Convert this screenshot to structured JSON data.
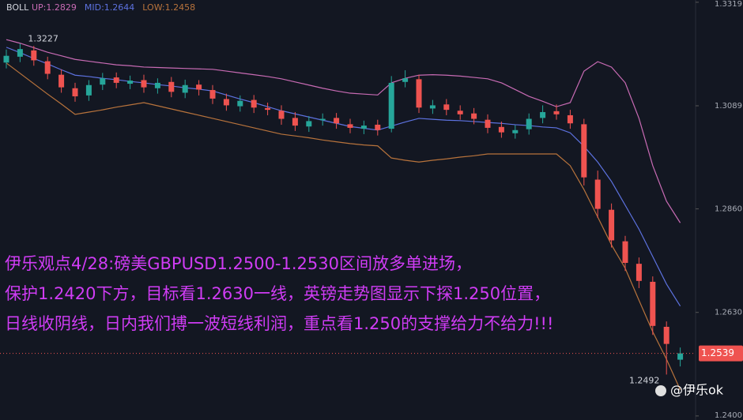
{
  "chart_data": {
    "type": "candlestick",
    "indicator": "BOLL",
    "ylim": [
      1.2391,
      1.3324
    ],
    "yticks": [
      1.3319,
      1.3089,
      {
        "value": 1.286,
        "label": "1.2860"
      },
      {
        "value": 1.263,
        "label": "1.2630"
      },
      {
        "value": 1.24,
        "label": "1.2400"
      }
    ],
    "up_color": "#26a69a",
    "down_color": "#ef5350",
    "open": [
      1.3185,
      1.3198,
      1.3212,
      1.3188,
      1.3158,
      1.3128,
      1.3112,
      1.3136,
      1.3152,
      1.3138,
      1.3146,
      1.3128,
      1.3142,
      1.3118,
      1.3136,
      1.3124,
      1.3104,
      1.3088,
      1.3102,
      1.3084,
      1.3078,
      1.3062,
      1.3043,
      1.3057,
      1.3062,
      1.3048,
      1.3038,
      1.3047,
      1.3038,
      1.3142,
      1.3148,
      1.3083,
      1.3092,
      1.3078,
      1.3072,
      1.3058,
      1.3042,
      1.3028,
      1.3037,
      1.3062,
      1.3077,
      1.3068,
      1.3048,
      1.2925,
      1.2858,
      1.2788,
      1.2738,
      1.2698,
      1.2598,
      1.2525
    ],
    "high": [
      1.3214,
      1.3227,
      1.3222,
      1.3198,
      1.317,
      1.314,
      1.3146,
      1.3162,
      1.3163,
      1.3156,
      1.3158,
      1.315,
      1.3153,
      1.3147,
      1.3146,
      1.3135,
      1.3116,
      1.3112,
      1.3113,
      1.3096,
      1.309,
      1.3075,
      1.3066,
      1.3072,
      1.3073,
      1.306,
      1.3056,
      1.3058,
      1.3155,
      1.3168,
      1.3158,
      1.3102,
      1.3104,
      1.309,
      1.3084,
      1.307,
      1.3054,
      1.3046,
      1.3072,
      1.309,
      1.3092,
      1.308,
      1.306,
      1.2945,
      1.2872,
      1.28,
      1.2752,
      1.271,
      1.261,
      1.2552
    ],
    "low": [
      1.3172,
      1.3186,
      1.3178,
      1.3148,
      1.3118,
      1.3098,
      1.31,
      1.3124,
      1.3128,
      1.3126,
      1.3118,
      1.3116,
      1.3108,
      1.3106,
      1.3112,
      1.3093,
      1.3078,
      1.3076,
      1.3073,
      1.3068,
      1.3047,
      1.3033,
      1.3031,
      1.3045,
      1.3038,
      1.3028,
      1.3026,
      1.3023,
      1.303,
      1.313,
      1.3073,
      1.3071,
      1.3068,
      1.3058,
      1.3048,
      1.3028,
      1.3018,
      1.3016,
      1.3025,
      1.305,
      1.3058,
      1.3038,
      1.2912,
      1.284,
      1.2774,
      1.2722,
      1.2684,
      1.258,
      1.2492,
      1.251
    ],
    "close": [
      1.32,
      1.3215,
      1.319,
      1.316,
      1.313,
      1.311,
      1.3135,
      1.315,
      1.314,
      1.3145,
      1.313,
      1.314,
      1.312,
      1.3135,
      1.3125,
      1.3105,
      1.309,
      1.31,
      1.3085,
      1.308,
      1.306,
      1.3045,
      1.3055,
      1.306,
      1.305,
      1.304,
      1.3045,
      1.3035,
      1.314,
      1.315,
      1.3085,
      1.309,
      1.308,
      1.307,
      1.306,
      1.304,
      1.303,
      1.3035,
      1.306,
      1.3075,
      1.307,
      1.305,
      1.293,
      1.286,
      1.279,
      1.274,
      1.27,
      1.26,
      1.256,
      1.2539
    ],
    "bands": [
      {
        "label": "UP:1.2829",
        "color": "#c86bb4",
        "values": [
          1.3236,
          1.3228,
          1.3218,
          1.3208,
          1.32,
          1.3192,
          1.3188,
          1.3184,
          1.318,
          1.3178,
          1.3175,
          1.3174,
          1.3173,
          1.3172,
          1.3171,
          1.317,
          1.3166,
          1.3162,
          1.3158,
          1.3154,
          1.3149,
          1.3142,
          1.3135,
          1.3128,
          1.3122,
          1.3117,
          1.3115,
          1.3113,
          1.314,
          1.315,
          1.3157,
          1.3158,
          1.3157,
          1.3155,
          1.3152,
          1.3149,
          1.314,
          1.3125,
          1.311,
          1.3099,
          1.3087,
          1.3096,
          1.3166,
          1.3187,
          1.3175,
          1.314,
          1.3061,
          1.2956,
          1.2877,
          1.2829
        ]
      },
      {
        "label": "MID:1.2644",
        "color": "#5d72e0",
        "values": [
          1.3219,
          1.3207,
          1.3194,
          1.3182,
          1.3169,
          1.3157,
          1.3154,
          1.315,
          1.3147,
          1.3143,
          1.314,
          1.3136,
          1.3133,
          1.3129,
          1.3126,
          1.3122,
          1.3113,
          1.3104,
          1.3096,
          1.3087,
          1.3078,
          1.3071,
          1.3064,
          1.3057,
          1.305,
          1.3043,
          1.3039,
          1.3035,
          1.3044,
          1.3053,
          1.3061,
          1.3059,
          1.3057,
          1.3056,
          1.3054,
          1.3052,
          1.305,
          1.3047,
          1.3045,
          1.3042,
          1.304,
          1.3029,
          1.2999,
          1.2964,
          1.2921,
          1.2868,
          1.2815,
          1.2754,
          1.2693,
          1.2644
        ]
      },
      {
        "label": "LOW:1.2458",
        "color": "#b8733c",
        "values": [
          1.3184,
          1.3161,
          1.3138,
          1.3115,
          1.3093,
          1.307,
          1.3075,
          1.308,
          1.3086,
          1.3091,
          1.3096,
          1.3089,
          1.3082,
          1.3075,
          1.3068,
          1.3061,
          1.3054,
          1.3047,
          1.304,
          1.3033,
          1.3026,
          1.3022,
          1.3018,
          1.3013,
          1.3009,
          1.3005,
          1.3002,
          1.3,
          1.2973,
          1.2968,
          1.2964,
          1.2968,
          1.2971,
          1.2975,
          1.2978,
          1.2982,
          1.2982,
          1.2982,
          1.2982,
          1.2982,
          1.2982,
          1.2956,
          1.2903,
          1.2842,
          1.278,
          1.2728,
          1.2657,
          1.2587,
          1.2526,
          1.2458
        ]
      }
    ],
    "annotations": [
      "伊乐观点4/28:磅美GBPUSD1.2500-1.2530区间放多单进场，",
      "保护1.2420下方，目标看1.2630一线，英镑走势图显示下探1.250位置，",
      "日线收阴线，日内我们搏一波短线利润，重点看1.250的支撑给力不给力!!!"
    ],
    "annotation_color": "#d03cf5",
    "watermark": "@伊乐ok"
  }
}
